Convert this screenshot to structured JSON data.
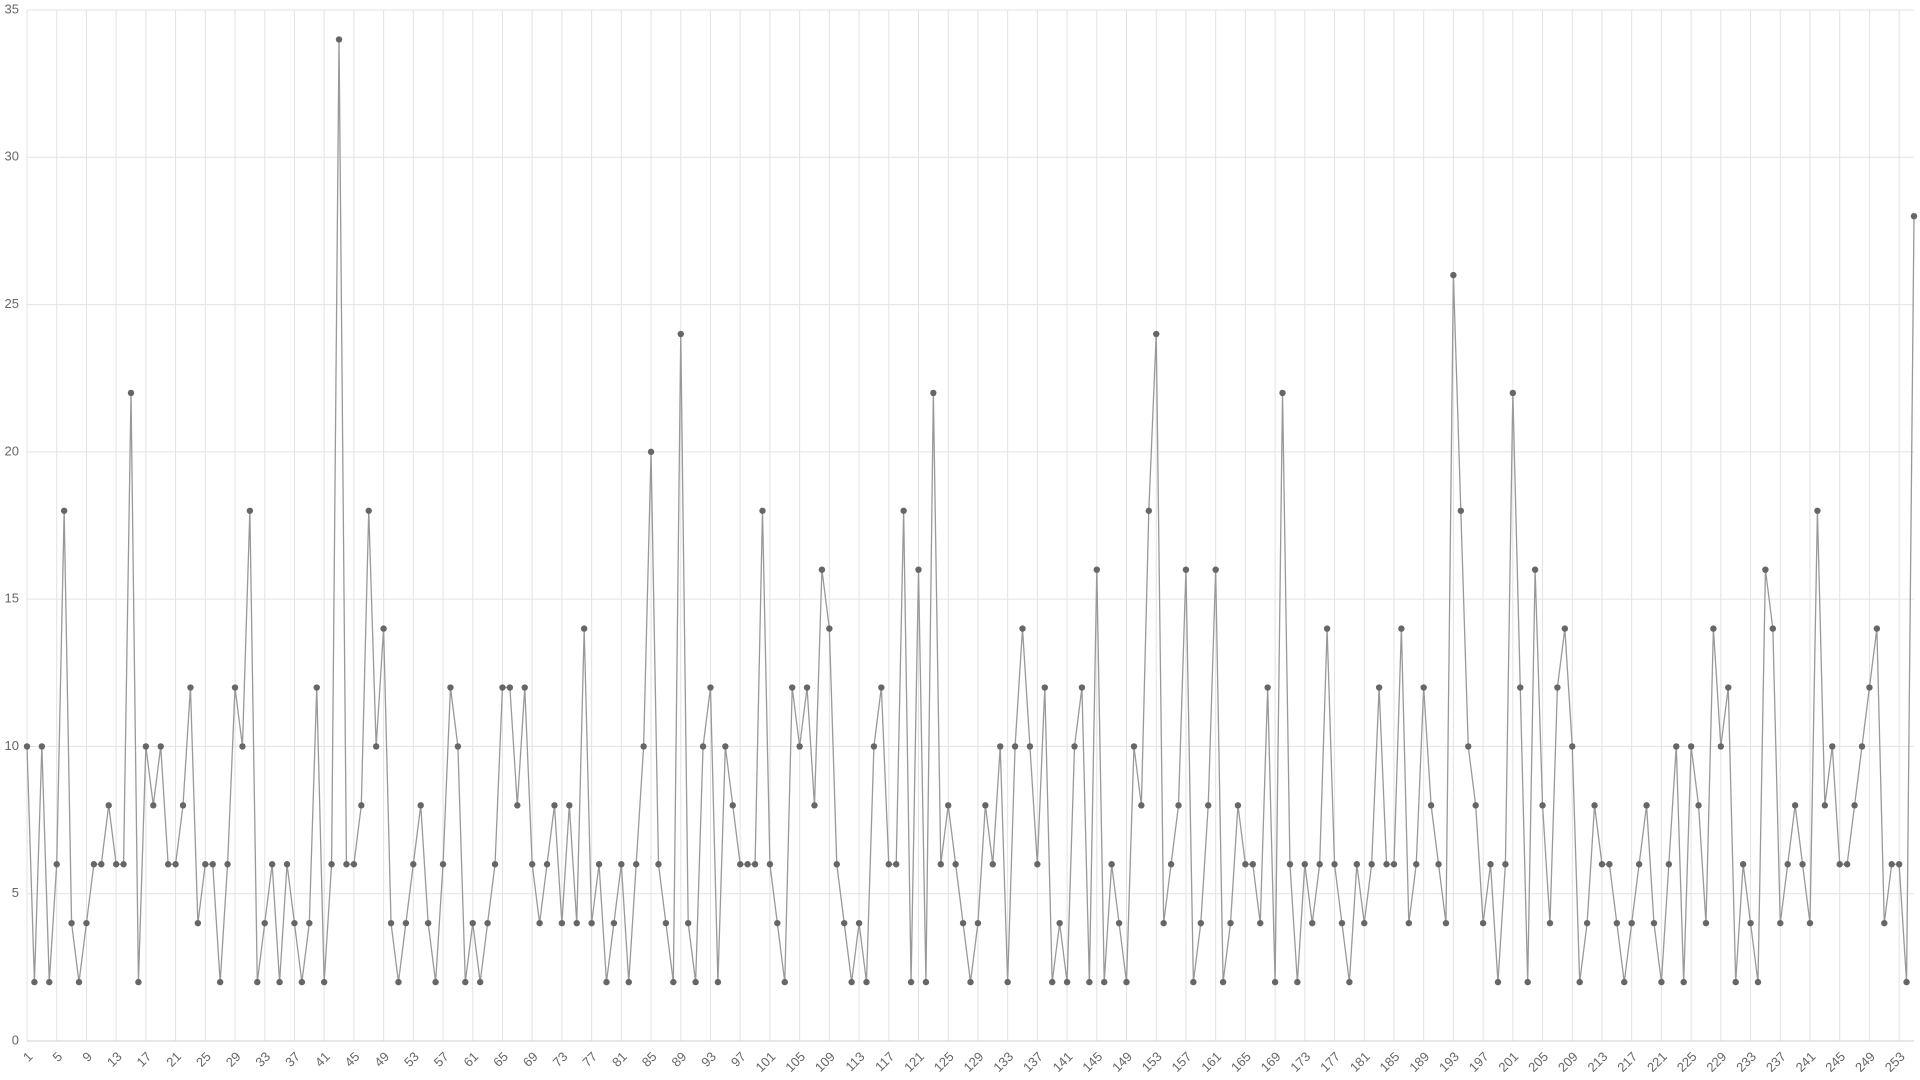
{
  "chart_data": {
    "type": "line",
    "x": [
      1,
      2,
      3,
      4,
      5,
      6,
      7,
      8,
      9,
      10,
      11,
      12,
      13,
      14,
      15,
      16,
      17,
      18,
      19,
      20,
      21,
      22,
      23,
      24,
      25,
      26,
      27,
      28,
      29,
      30,
      31,
      32,
      33,
      34,
      35,
      36,
      37,
      38,
      39,
      40,
      41,
      42,
      43,
      44,
      45,
      46,
      47,
      48,
      49,
      50,
      51,
      52,
      53,
      54,
      55,
      56,
      57,
      58,
      59,
      60,
      61,
      62,
      63,
      64,
      65,
      66,
      67,
      68,
      69,
      70,
      71,
      72,
      73,
      74,
      75,
      76,
      77,
      78,
      79,
      80,
      81,
      82,
      83,
      84,
      85,
      86,
      87,
      88,
      89,
      90,
      91,
      92,
      93,
      94,
      95,
      96,
      97,
      98,
      99,
      100,
      101,
      102,
      103,
      104,
      105,
      106,
      107,
      108,
      109,
      110,
      111,
      112,
      113,
      114,
      115,
      116,
      117,
      118,
      119,
      120,
      121,
      122,
      123,
      124,
      125,
      126,
      127,
      128,
      129,
      130,
      131,
      132,
      133,
      134,
      135,
      136,
      137,
      138,
      139,
      140,
      141,
      142,
      143,
      144,
      145,
      146,
      147,
      148,
      149,
      150,
      151,
      152,
      153,
      154,
      155,
      156,
      157,
      158,
      159,
      160,
      161,
      162,
      163,
      164,
      165,
      166,
      167,
      168,
      169,
      170,
      171,
      172,
      173,
      174,
      175,
      176,
      177,
      178,
      179,
      180,
      181,
      182,
      183,
      184,
      185,
      186,
      187,
      188,
      189,
      190,
      191,
      192,
      193,
      194,
      195,
      196,
      197,
      198,
      199,
      200,
      201,
      202,
      203,
      204,
      205,
      206,
      207,
      208,
      209,
      210,
      211,
      212,
      213,
      214,
      215,
      216,
      217,
      218,
      219,
      220,
      221,
      222,
      223,
      224,
      225,
      226,
      227,
      228,
      229,
      230,
      231,
      232,
      233,
      234,
      235,
      236,
      237,
      238,
      239,
      240,
      241,
      242,
      243,
      244,
      245,
      246,
      247,
      248,
      249,
      250,
      251,
      252,
      253,
      254,
      255
    ],
    "series": [
      {
        "color": "#666666",
        "values": [
          10,
          2,
          10,
          2,
          6,
          18,
          4,
          2,
          4,
          6,
          6,
          8,
          6,
          6,
          22,
          2,
          10,
          8,
          10,
          6,
          6,
          8,
          12,
          4,
          6,
          6,
          2,
          6,
          12,
          10,
          18,
          2,
          4,
          6,
          2,
          6,
          4,
          2,
          4,
          12,
          2,
          6,
          34,
          6,
          6,
          8,
          18,
          10,
          14,
          4,
          2,
          4,
          6,
          8,
          4,
          2,
          6,
          12,
          10,
          2,
          4,
          2,
          4,
          6,
          12,
          12,
          8,
          12,
          6,
          4,
          6,
          8,
          4,
          8,
          4,
          14,
          4,
          6,
          2,
          4,
          6,
          2,
          6,
          10,
          20,
          6,
          4,
          2,
          24,
          4,
          2,
          10,
          12,
          2,
          10,
          8,
          6,
          6,
          6,
          18,
          6,
          4,
          2,
          12,
          10,
          12,
          8,
          16,
          14,
          6,
          4,
          2,
          4,
          2,
          10,
          12,
          6,
          6,
          18,
          2,
          16,
          2,
          22,
          6,
          8,
          6,
          4,
          2,
          4,
          8,
          6,
          10,
          2,
          10,
          14,
          10,
          6,
          12,
          2,
          4,
          2,
          10,
          12,
          2,
          16,
          2,
          6,
          4,
          2,
          10,
          8,
          18,
          24,
          4,
          6,
          8,
          16,
          2,
          4,
          8,
          16,
          2,
          4,
          8,
          6,
          6,
          4,
          12,
          2,
          22,
          6,
          2,
          6,
          4,
          6,
          14,
          6,
          4,
          2,
          6,
          4,
          6,
          12,
          6,
          6,
          14,
          4,
          6,
          12,
          8,
          6,
          4,
          26,
          18,
          10,
          8,
          4,
          6,
          2,
          6,
          22,
          12,
          2,
          16,
          8,
          4,
          12,
          14,
          10,
          2,
          4,
          8,
          6,
          6,
          4,
          2,
          4,
          6,
          8,
          4,
          2,
          6,
          10,
          2,
          10,
          8,
          4,
          14,
          10,
          12,
          2,
          6,
          4,
          2,
          16,
          14,
          4,
          6,
          8,
          6,
          4,
          18,
          8,
          10,
          6,
          6,
          8,
          10,
          12,
          14,
          4,
          6,
          6,
          2,
          28
        ]
      }
    ],
    "xlim": [
      1,
      255
    ],
    "xticks": [
      1,
      5,
      9,
      13,
      17,
      21,
      25,
      29,
      33,
      37,
      41,
      45,
      49,
      53,
      57,
      61,
      65,
      69,
      73,
      77,
      81,
      85,
      89,
      93,
      97,
      101,
      105,
      109,
      113,
      117,
      121,
      125,
      129,
      133,
      137,
      141,
      145,
      149,
      153,
      157,
      161,
      165,
      169,
      173,
      177,
      181,
      185,
      189,
      193,
      197,
      201,
      205,
      209,
      213,
      217,
      221,
      225,
      229,
      233,
      237,
      241,
      245,
      249,
      253
    ],
    "ylim": [
      0,
      35
    ],
    "yticks": [
      0,
      5,
      10,
      15,
      20,
      25,
      30,
      35
    ],
    "grid": true
  }
}
